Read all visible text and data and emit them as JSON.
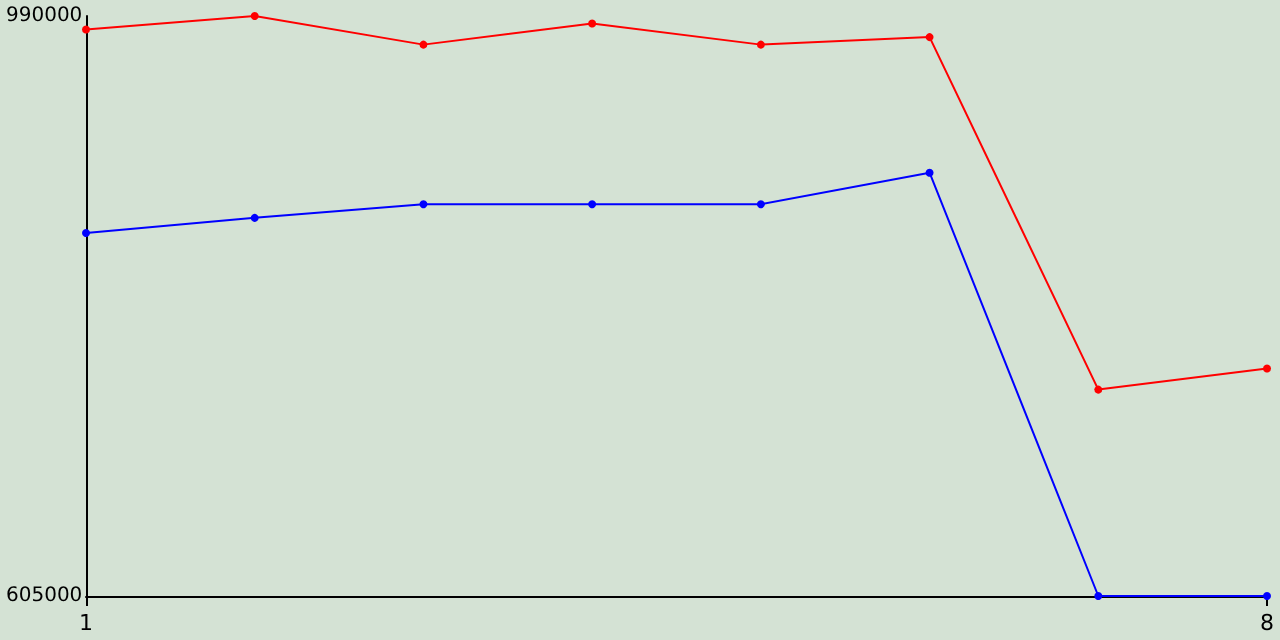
{
  "chart_data": {
    "type": "line",
    "x": [
      1,
      2,
      3,
      4,
      5,
      6,
      7,
      8
    ],
    "series": [
      {
        "color": "#ff0000",
        "values": [
          981000,
          990000,
          971000,
          985000,
          971000,
          976000,
          742000,
          756000
        ]
      },
      {
        "color": "#0000ff",
        "values": [
          846000,
          856000,
          865000,
          865000,
          865000,
          886000,
          605000,
          605000
        ]
      }
    ],
    "xlim": [
      1,
      8
    ],
    "xticks": [
      1,
      8
    ],
    "ylim": [
      605000,
      990000
    ],
    "yticks": [
      605000,
      990000
    ],
    "grid": false,
    "marker": "circle",
    "line_style": "solid"
  }
}
